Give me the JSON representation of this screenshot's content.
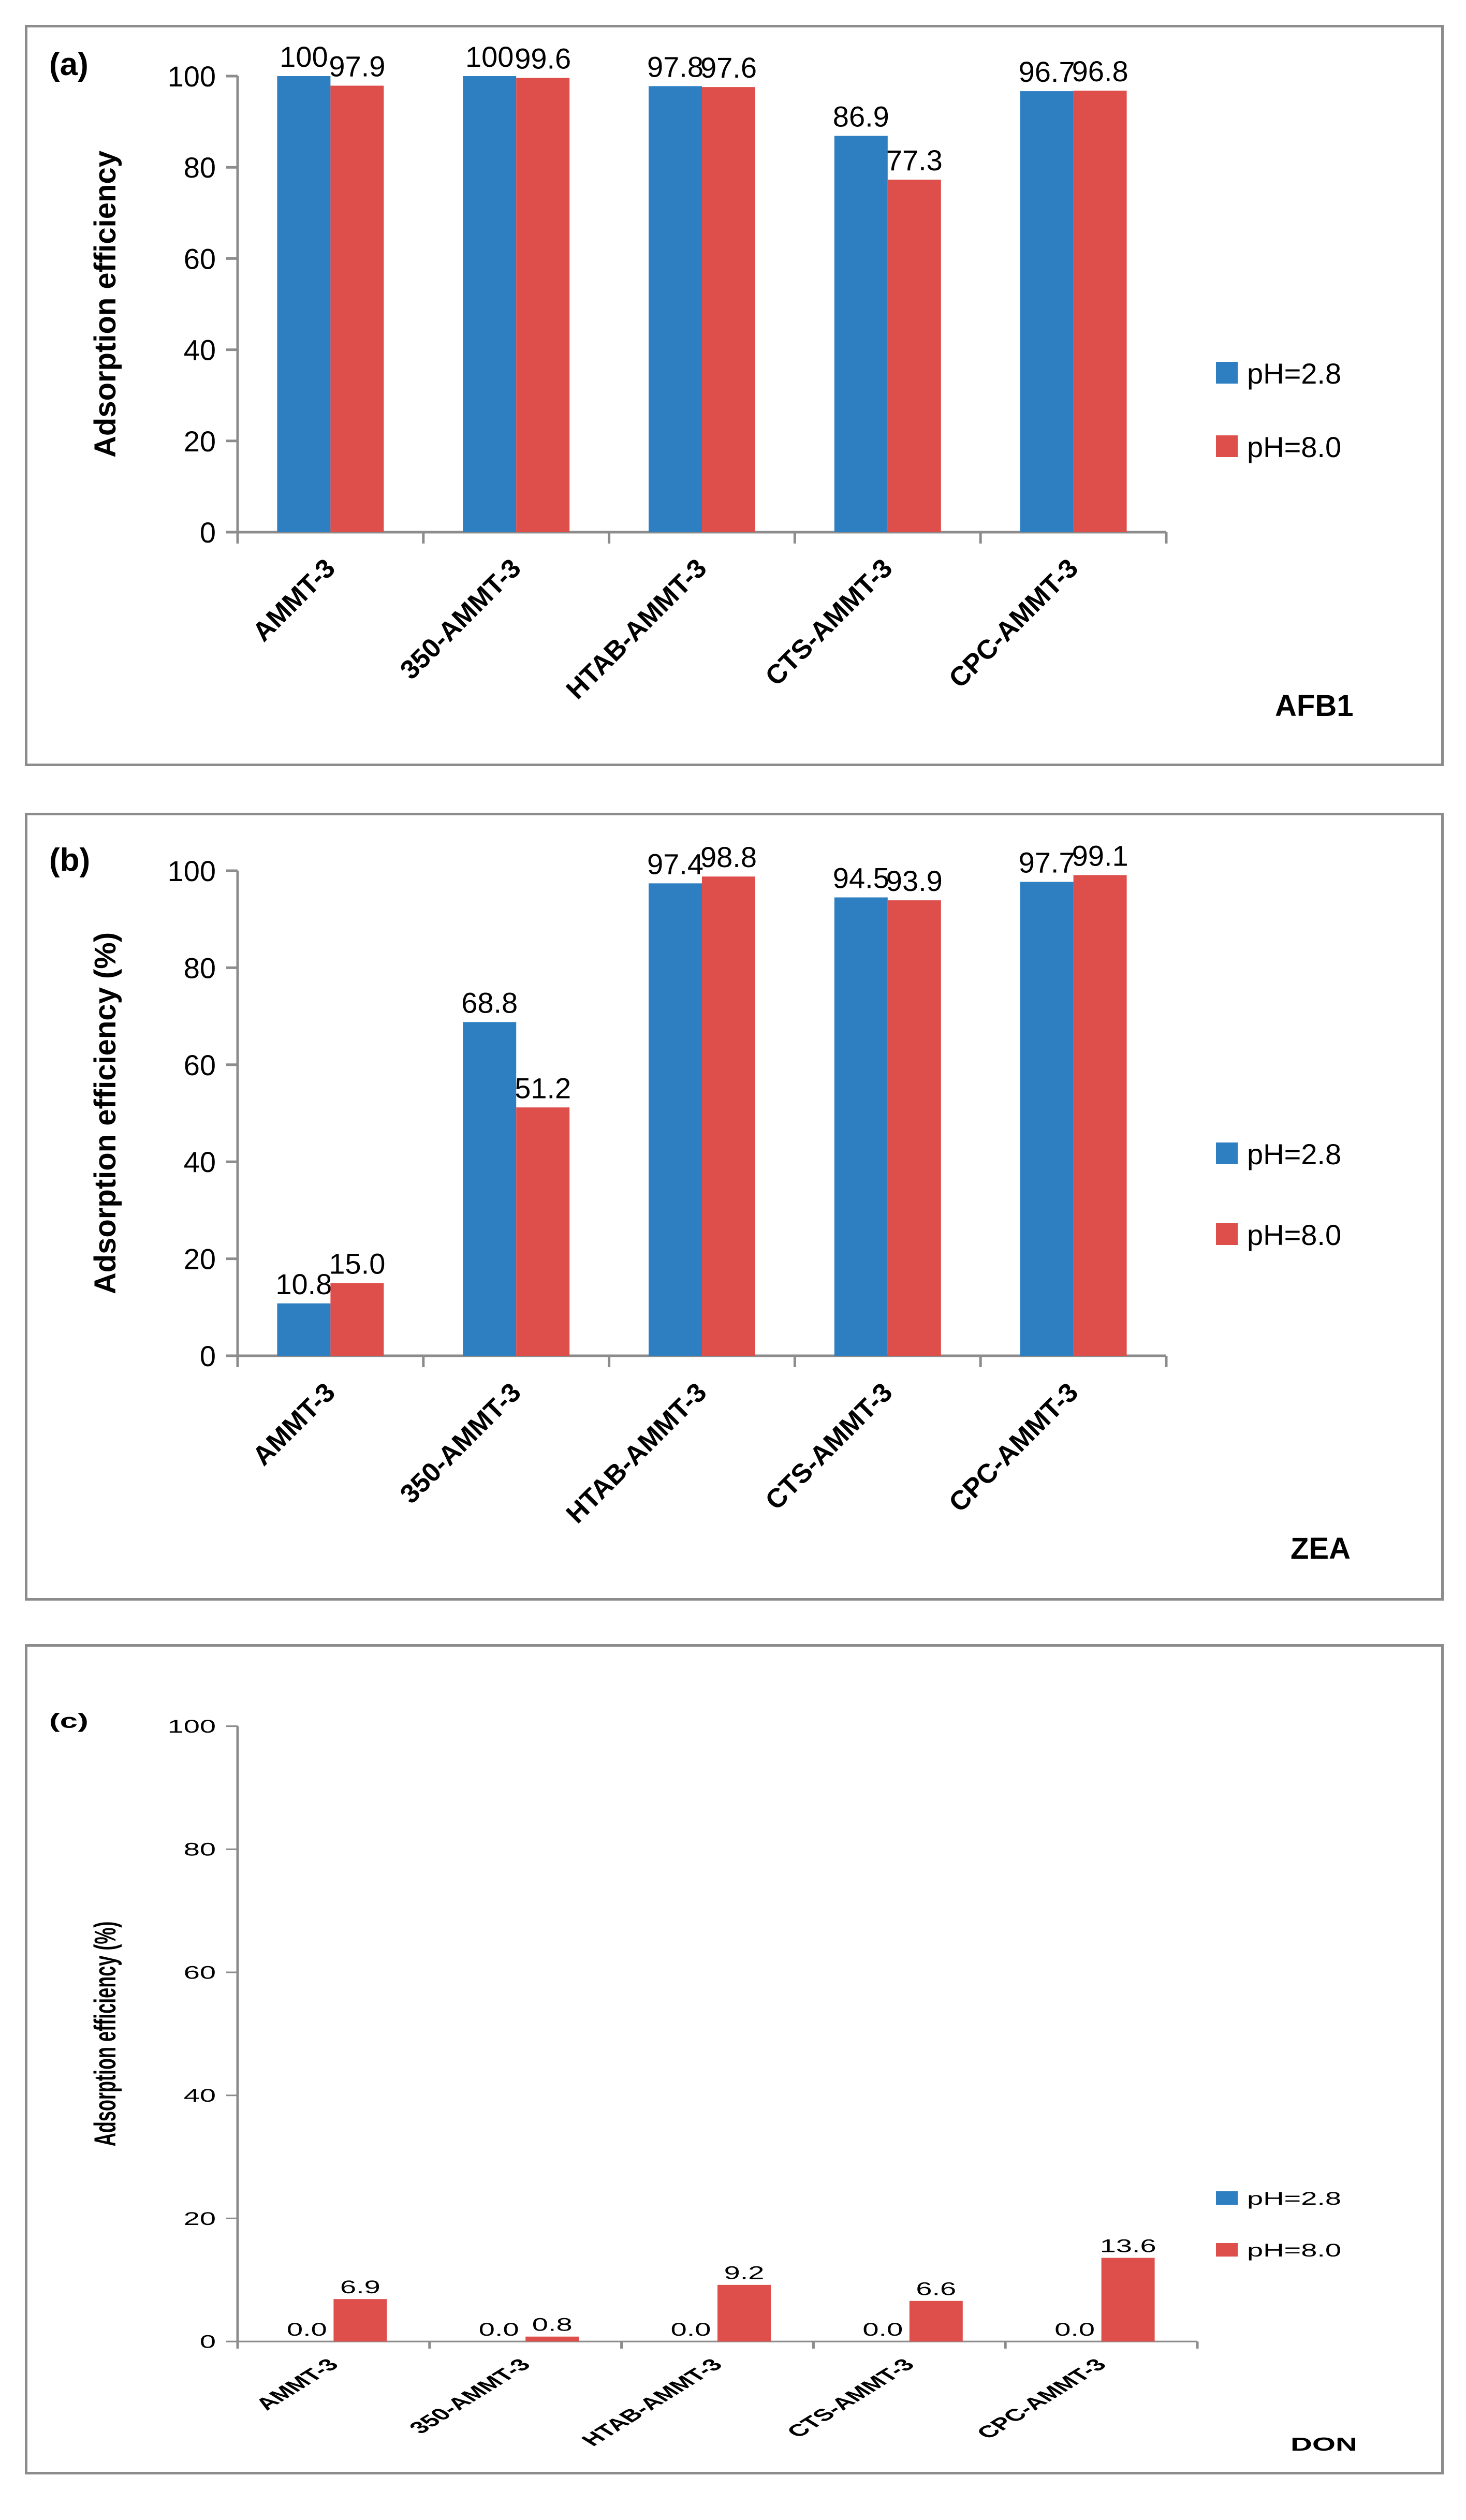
{
  "legend": {
    "series": [
      "pH=2.8",
      "pH=8.0"
    ]
  },
  "colors": {
    "ph28": "#2d7fc2",
    "ph80": "#de4f4c",
    "axis": "#8c8c8c",
    "frame": "#8c8c8c",
    "text": "#000000"
  },
  "chart_data": [
    {
      "type": "bar",
      "panel_label": "(a)",
      "title": "AFB1",
      "ylabel": "Adsorption efficiency",
      "ylim": [
        0,
        100
      ],
      "yticks": [
        0,
        20,
        40,
        60,
        80,
        100
      ],
      "categories": [
        "AMMT-3",
        "350-AMMT-3",
        "HTAB-AMMT-3",
        "CTS-AMMT-3",
        "CPC-AMMT-3"
      ],
      "series": [
        {
          "name": "pH=2.8",
          "values": [
            100,
            100,
            97.8,
            86.9,
            96.7
          ],
          "labels": [
            "100",
            "100",
            "97.8",
            "86.9",
            "96.7"
          ]
        },
        {
          "name": "pH=8.0",
          "values": [
            97.9,
            99.6,
            97.6,
            77.3,
            96.8
          ],
          "labels": [
            "97.9",
            "99.6",
            "97.6",
            "77.3",
            "96.8"
          ]
        }
      ]
    },
    {
      "type": "bar",
      "panel_label": "(b)",
      "title": "ZEA",
      "ylabel": "Adsorption efficiency (%)",
      "ylim": [
        0,
        100
      ],
      "yticks": [
        0,
        20,
        40,
        60,
        80,
        100
      ],
      "categories": [
        "AMMT-3",
        "350-AMMT-3",
        "HTAB-AMMT-3",
        "CTS-AMMT-3",
        "CPC-AMMT-3"
      ],
      "series": [
        {
          "name": "pH=2.8",
          "values": [
            10.8,
            68.8,
            97.4,
            94.5,
            97.7
          ],
          "labels": [
            "10.8",
            "68.8",
            "97.4",
            "94.5",
            "97.7"
          ]
        },
        {
          "name": "pH=8.0",
          "values": [
            15.0,
            51.2,
            98.8,
            93.9,
            99.1
          ],
          "labels": [
            "15.0",
            "51.2",
            "98.8",
            "93.9",
            "99.1"
          ]
        }
      ]
    },
    {
      "type": "bar",
      "panel_label": "(c)",
      "title": "DON",
      "ylabel": "Adsorption efficiency (%)",
      "ylim": [
        0,
        100
      ],
      "yticks": [
        0,
        20,
        40,
        60,
        80,
        100
      ],
      "categories": [
        "AMMT-3",
        "350-AMMT-3",
        "HTAB-AMMT-3",
        "CTS-AMMT-3",
        "CPC-AMMT-3"
      ],
      "series": [
        {
          "name": "pH=2.8",
          "values": [
            0.0,
            0.0,
            0.0,
            0.0,
            0.0
          ],
          "labels": [
            "0.0",
            "0.0",
            "0.0",
            "0.0",
            "0.0"
          ]
        },
        {
          "name": "pH=8.0",
          "values": [
            6.9,
            0.8,
            9.2,
            6.6,
            13.6
          ],
          "labels": [
            "6.9",
            "0.8",
            "9.2",
            "6.6",
            "13.6"
          ]
        }
      ]
    }
  ]
}
